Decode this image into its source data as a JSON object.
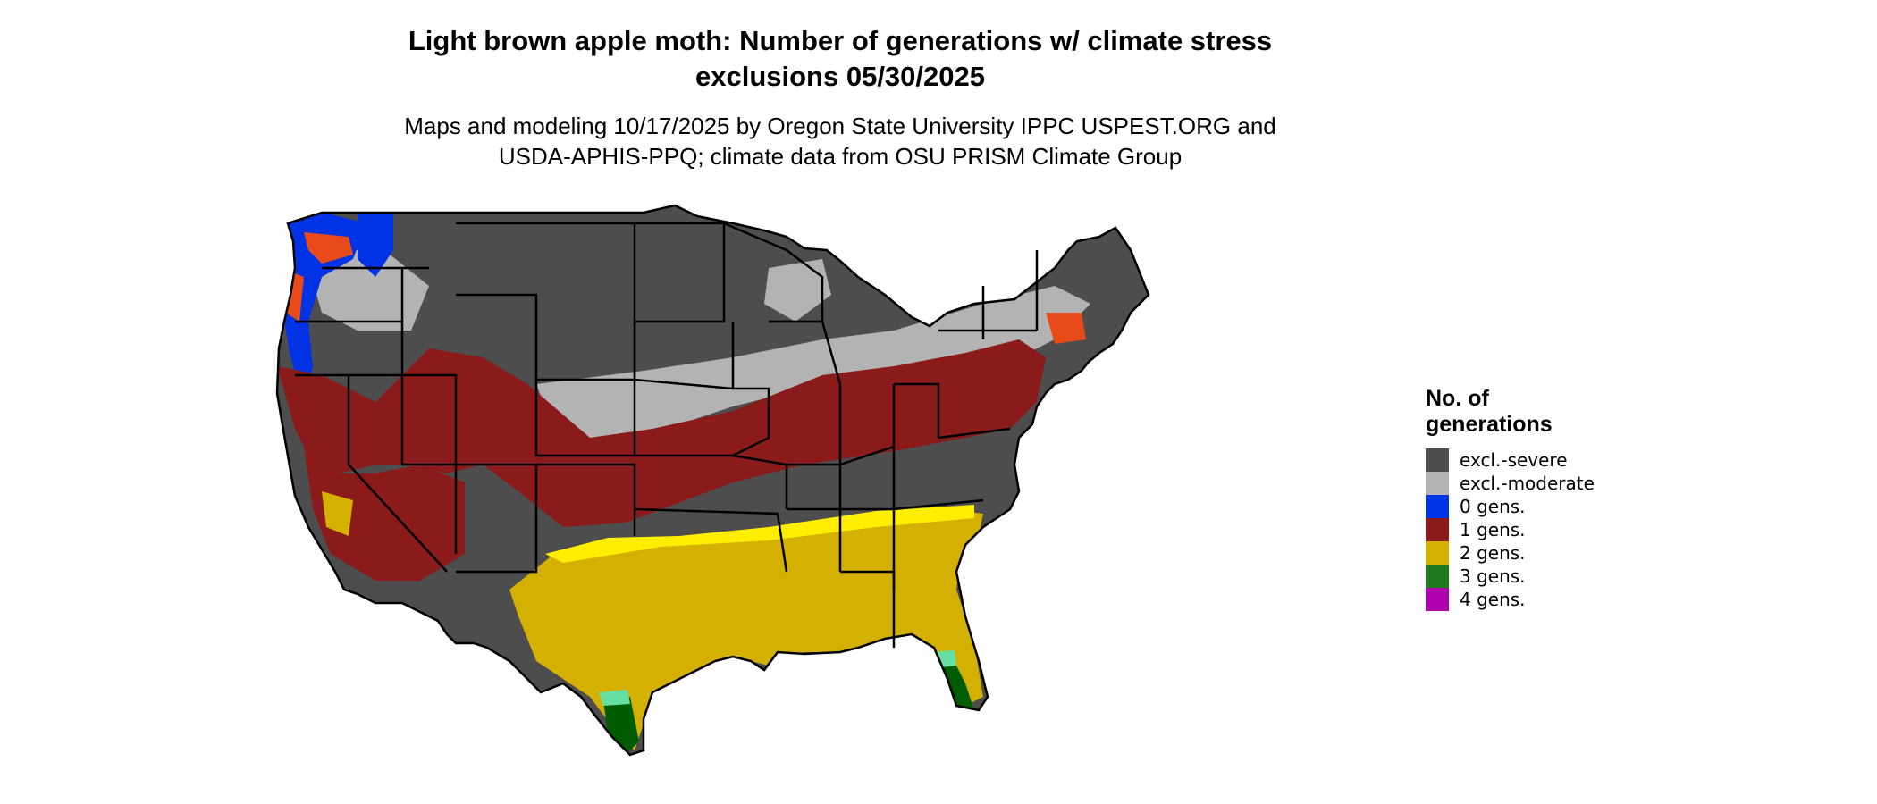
{
  "title_lines": [
    "Light brown apple moth: Number of generations w/ climate stress",
    "exclusions 05/30/2025"
  ],
  "subtitle_lines": [
    "Maps and modeling 10/17/2025 by Oregon State University IPPC USPEST.ORG and",
    "USDA-APHIS-PPQ; climate data from OSU PRISM Climate Group"
  ],
  "legend": {
    "title_lines": [
      "No. of",
      "generations"
    ],
    "items": [
      {
        "label": "excl.-severe",
        "color": "#4d4d4d"
      },
      {
        "label": "excl.-moderate",
        "color": "#b3b3b3"
      },
      {
        "label": "0 gens.",
        "color": "#0033e6"
      },
      {
        "label": "1 gens.",
        "color": "#8b1a1a"
      },
      {
        "label": "2 gens.",
        "color": "#d4b000"
      },
      {
        "label": "3 gens.",
        "color": "#1e7a1e"
      },
      {
        "label": "4 gens.",
        "color": "#b000b0"
      }
    ]
  },
  "map_colors": {
    "severe": "#4d4d4d",
    "moderate": "#b3b3b3",
    "zero": "#0033e6",
    "one": "#8b1a1a",
    "one_orange": "#e84a1a",
    "two": "#d4b000",
    "two_yellow": "#ffee00",
    "three": "#005c00",
    "three_light": "#66e0a0",
    "four": "#e020e0",
    "border": "#000000"
  }
}
